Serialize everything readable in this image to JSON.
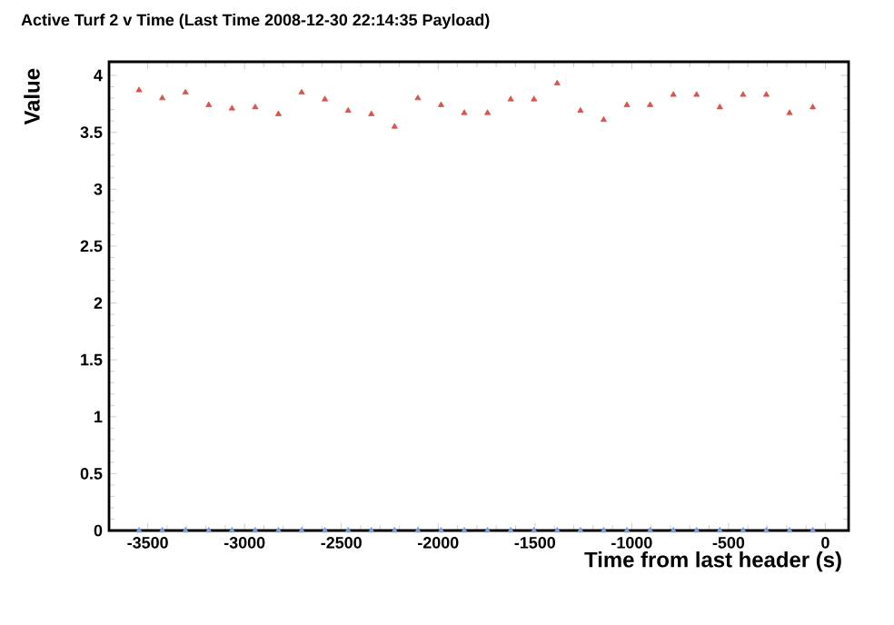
{
  "chart_data": {
    "type": "scatter",
    "title": "Active Turf 2 v Time (Last Time 2008-12-30 22:14:35 Payload)",
    "xlabel": "Time from last header (s)",
    "ylabel": "Value",
    "marker": "triangle",
    "xlim": [
      -3700,
      120
    ],
    "ylim": [
      0,
      4.12
    ],
    "xticks": [
      -3500,
      -3000,
      -2500,
      -2000,
      -1500,
      -1000,
      -500,
      0
    ],
    "yticks": [
      0,
      0.5,
      1,
      1.5,
      2,
      2.5,
      3,
      3.5,
      4
    ],
    "x": [
      -3545,
      -3425,
      -3305,
      -3185,
      -3065,
      -2945,
      -2825,
      -2705,
      -2585,
      -2465,
      -2345,
      -2225,
      -2105,
      -1985,
      -1865,
      -1745,
      -1625,
      -1505,
      -1385,
      -1265,
      -1145,
      -1025,
      -905,
      -785,
      -665,
      -545,
      -425,
      -305,
      -185,
      -65
    ],
    "series": [
      {
        "color": "#d9534f",
        "values": [
          3.87,
          3.8,
          3.85,
          3.74,
          3.71,
          3.72,
          3.66,
          3.85,
          3.79,
          3.69,
          3.66,
          3.55,
          3.8,
          3.74,
          3.67,
          3.67,
          3.79,
          3.79,
          3.93,
          3.69,
          3.61,
          3.74,
          3.74,
          3.83,
          3.83,
          3.72,
          3.83,
          3.83,
          3.67,
          3.72
        ]
      },
      {
        "color": "#7b9fd4",
        "values": [
          0,
          0,
          0,
          0,
          0,
          0,
          0,
          0,
          0,
          0,
          0,
          0,
          0,
          0,
          0,
          0,
          0,
          0,
          0,
          0,
          0,
          0,
          0,
          0,
          0,
          0,
          0,
          0,
          0,
          0
        ]
      }
    ]
  }
}
